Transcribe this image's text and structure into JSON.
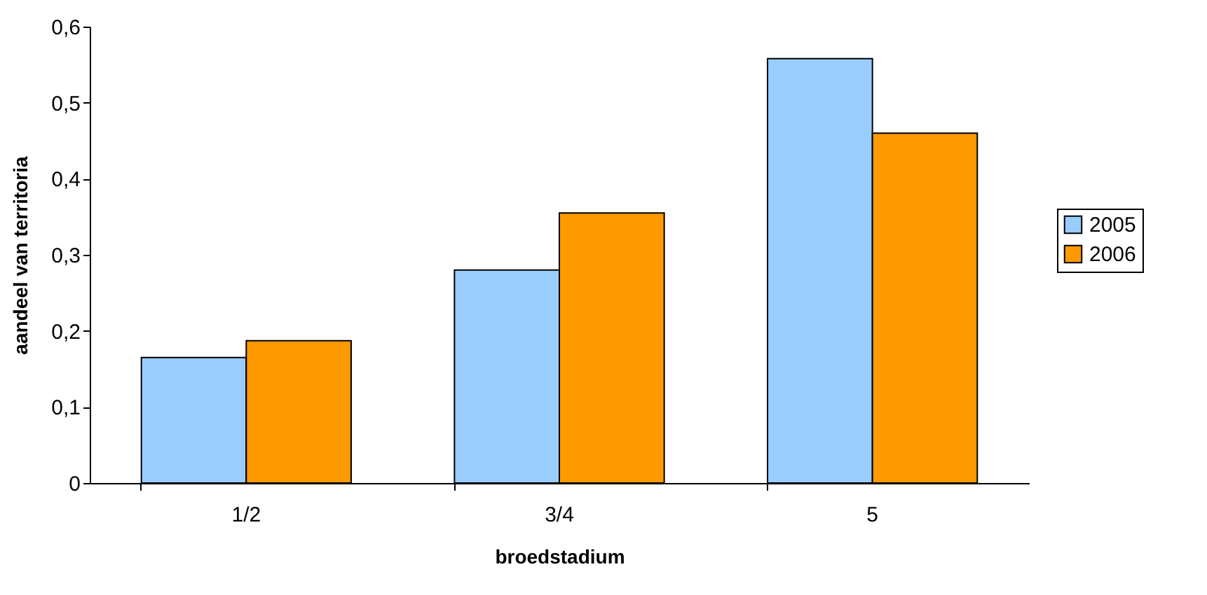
{
  "chart_data": {
    "type": "bar",
    "xlabel": "broedstadium",
    "ylabel": "aandeel van territoria",
    "categories": [
      "1/2",
      "3/4",
      "5"
    ],
    "series": [
      {
        "name": "2005",
        "color": "#99ccff",
        "values": [
          0.165,
          0.28,
          0.558
        ]
      },
      {
        "name": "2006",
        "color": "#ff9900",
        "values": [
          0.187,
          0.355,
          0.46
        ]
      }
    ],
    "ylim": [
      0,
      0.6
    ],
    "yticks": [
      0,
      {
        "value": 0.1,
        "label": "0,1"
      },
      {
        "value": 0.2,
        "label": "0,2"
      },
      {
        "value": 0.3,
        "label": "0,3"
      },
      {
        "value": 0.4,
        "label": "0,4"
      },
      {
        "value": 0.5,
        "label": "0,5"
      },
      {
        "value": 0.6,
        "label": "0,6"
      }
    ],
    "grid": false,
    "legend": "right"
  }
}
